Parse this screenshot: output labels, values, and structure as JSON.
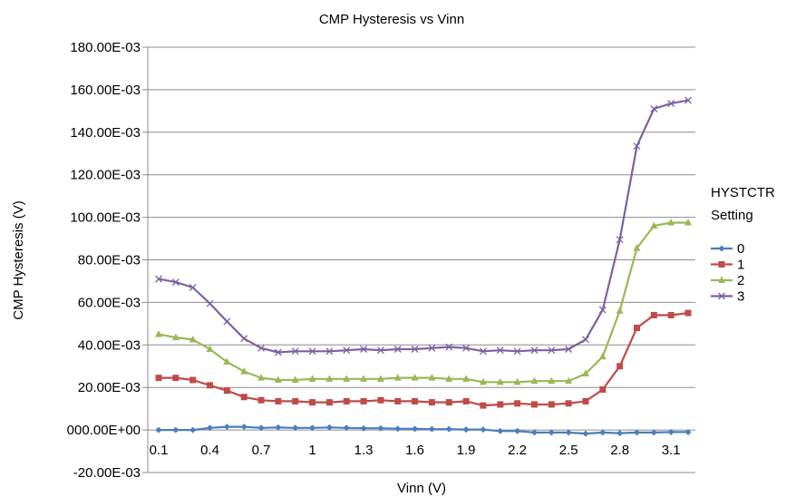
{
  "chart_data": {
    "type": "line",
    "title": "CMP Hysteresis vs Vinn",
    "xlabel": "Vinn (V)",
    "ylabel": "CMP Hysteresis (V)",
    "ylim": [
      -0.02,
      0.18
    ],
    "yticks": [
      -0.02,
      0.0,
      0.02,
      0.04,
      0.06,
      0.08,
      0.1,
      0.12,
      0.14,
      0.16,
      0.18
    ],
    "ytick_labels": [
      "-20.00E-03",
      "000.00E+00",
      "20.00E-03",
      "40.00E-03",
      "60.00E-03",
      "80.00E-03",
      "100.00E-03",
      "120.00E-03",
      "140.00E-03",
      "160.00E-03",
      "180.00E-03"
    ],
    "xtick_labels": [
      "0.1",
      "0.4",
      "0.7",
      "1",
      "1.3",
      "1.6",
      "1.9",
      "2.2",
      "2.5",
      "2.8",
      "3.1"
    ],
    "xtick_values": [
      0.1,
      0.4,
      0.7,
      1.0,
      1.3,
      1.6,
      1.9,
      2.2,
      2.5,
      2.8,
      3.1
    ],
    "grid": "horizontal",
    "legend_title": [
      "HYSTCTR",
      "Setting"
    ],
    "legend_position": "right",
    "x": [
      0.1,
      0.2,
      0.3,
      0.4,
      0.5,
      0.6,
      0.7,
      0.8,
      0.9,
      1.0,
      1.1,
      1.2,
      1.3,
      1.4,
      1.5,
      1.6,
      1.7,
      1.8,
      1.9,
      2.0,
      2.1,
      2.2,
      2.3,
      2.4,
      2.5,
      2.6,
      2.7,
      2.8,
      2.9,
      3.0,
      3.1,
      3.2
    ],
    "series": [
      {
        "name": "0",
        "color": "#4a7ebb",
        "marker": "diamond",
        "values": [
          0.0,
          0.0,
          0.0,
          0.001,
          0.0015,
          0.0015,
          0.001,
          0.0012,
          0.001,
          0.001,
          0.0012,
          0.001,
          0.0008,
          0.0008,
          0.0006,
          0.0005,
          0.0004,
          0.0004,
          0.0002,
          0.0002,
          -0.0005,
          -0.0005,
          -0.0012,
          -0.0012,
          -0.0012,
          -0.0017,
          -0.0012,
          -0.0015,
          -0.0012,
          -0.0012,
          -0.001,
          -0.001
        ]
      },
      {
        "name": "1",
        "color": "#be4b48",
        "marker": "square",
        "values": [
          0.0245,
          0.0245,
          0.0235,
          0.021,
          0.0185,
          0.0155,
          0.014,
          0.0135,
          0.0135,
          0.013,
          0.013,
          0.0135,
          0.0135,
          0.014,
          0.0135,
          0.0135,
          0.013,
          0.013,
          0.0135,
          0.0115,
          0.012,
          0.0125,
          0.012,
          0.012,
          0.0125,
          0.0135,
          0.019,
          0.03,
          0.048,
          0.054,
          0.054,
          0.055
        ]
      },
      {
        "name": "2",
        "color": "#98b954",
        "marker": "triangle",
        "values": [
          0.045,
          0.0435,
          0.0425,
          0.038,
          0.032,
          0.0275,
          0.0245,
          0.0235,
          0.0235,
          0.024,
          0.024,
          0.024,
          0.024,
          0.024,
          0.0245,
          0.0245,
          0.0245,
          0.024,
          0.024,
          0.0225,
          0.0225,
          0.0225,
          0.023,
          0.023,
          0.023,
          0.0265,
          0.0345,
          0.056,
          0.0855,
          0.096,
          0.0975,
          0.0975
        ]
      },
      {
        "name": "3",
        "color": "#7d60a0",
        "marker": "x",
        "values": [
          0.071,
          0.0695,
          0.067,
          0.0595,
          0.051,
          0.043,
          0.0385,
          0.0365,
          0.037,
          0.037,
          0.037,
          0.0375,
          0.038,
          0.0375,
          0.038,
          0.038,
          0.0385,
          0.039,
          0.0385,
          0.037,
          0.0375,
          0.037,
          0.0375,
          0.0375,
          0.038,
          0.0425,
          0.0565,
          0.0895,
          0.1335,
          0.151,
          0.1535,
          0.155
        ]
      }
    ]
  }
}
